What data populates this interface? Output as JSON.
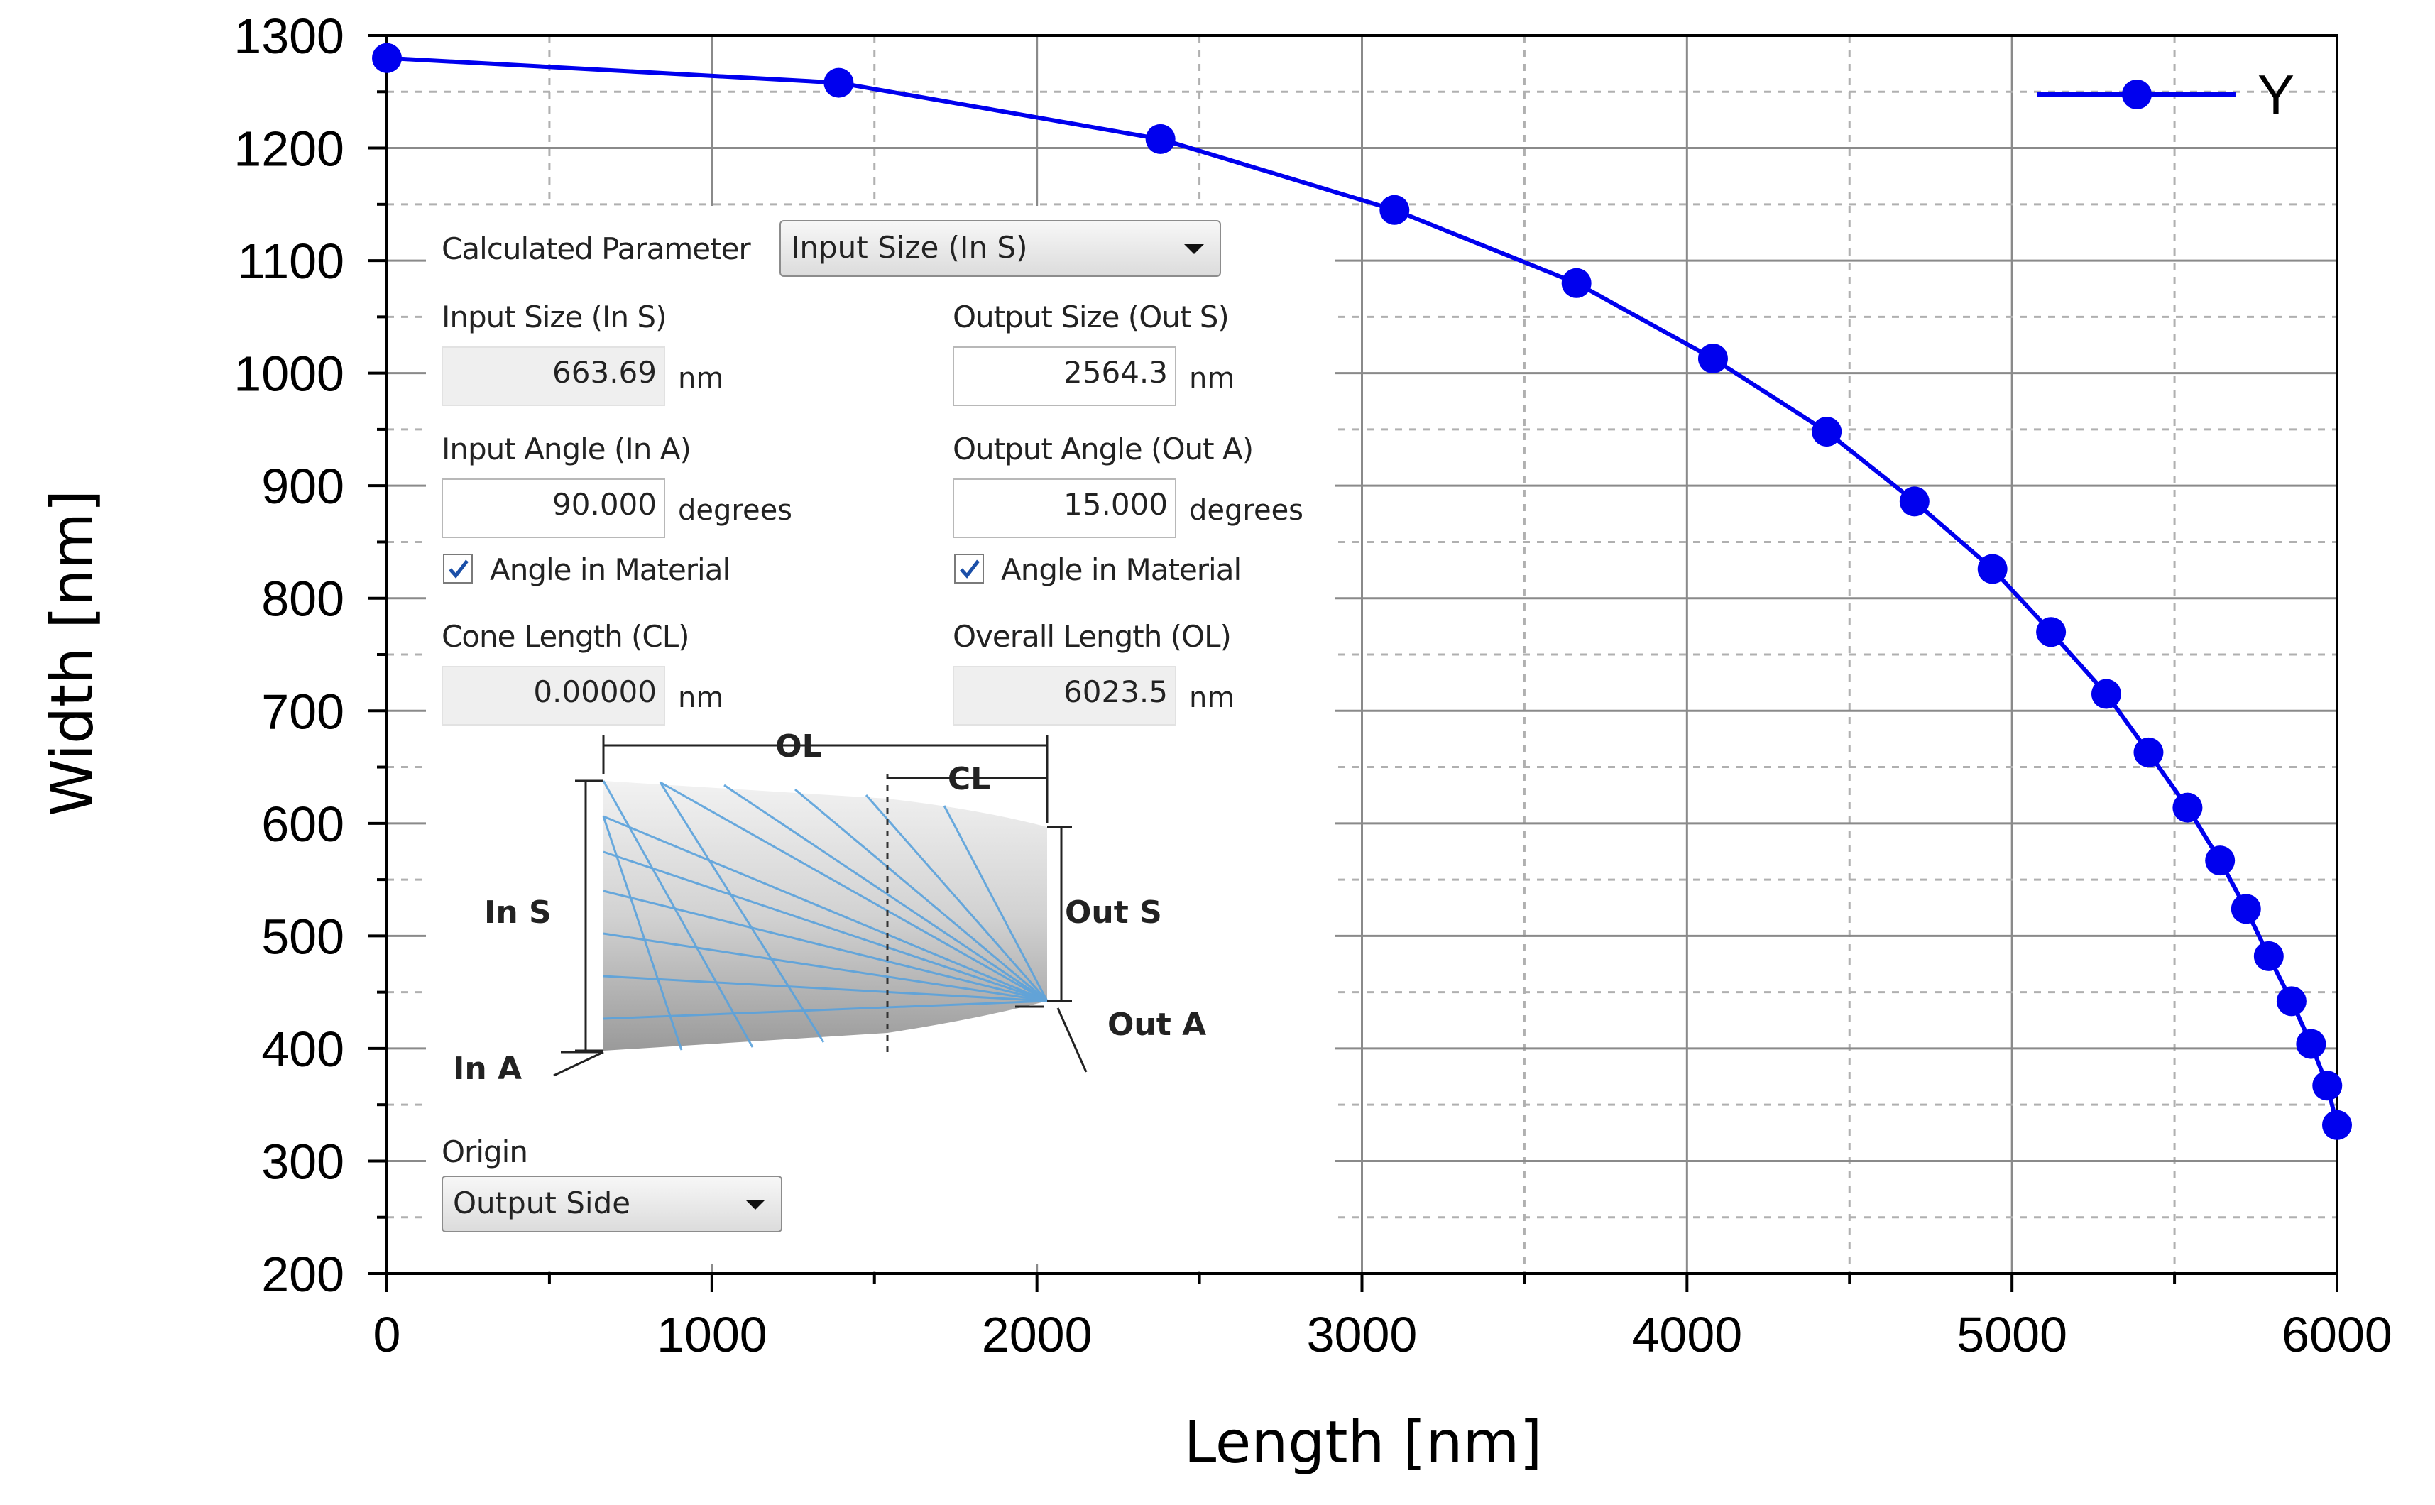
{
  "chart_data": {
    "type": "line",
    "title": "",
    "xlabel": "Length [nm]",
    "ylabel": "Width [nm]",
    "xlim": [
      0,
      6000
    ],
    "ylim": [
      200,
      1300
    ],
    "xticks": [
      0,
      1000,
      2000,
      3000,
      4000,
      5000,
      6000
    ],
    "yticks": [
      200,
      300,
      400,
      500,
      600,
      700,
      800,
      900,
      1000,
      1100,
      1200,
      1300
    ],
    "grid": true,
    "legend_position": "top-right",
    "series": [
      {
        "name": "Y",
        "color": "#0000ee",
        "marker": "circle",
        "x": [
          0,
          1390,
          2380,
          3100,
          3660,
          4080,
          4430,
          4700,
          4940,
          5120,
          5290,
          5420,
          5540,
          5640,
          5720,
          5790,
          5860,
          5920,
          5970,
          6000
        ],
        "y": [
          1280,
          1258,
          1208,
          1145,
          1080,
          1013,
          948,
          886,
          826,
          770,
          715,
          663,
          614,
          567,
          524,
          482,
          442,
          404,
          367,
          332
        ]
      }
    ]
  },
  "inset": {
    "calc_param_label": "Calculated Parameter",
    "calc_param_value": "Input Size (In S)",
    "input_size_label": "Input Size (In S)",
    "input_size_value": "663.69",
    "input_size_unit": "nm",
    "output_size_label": "Output Size (Out S)",
    "output_size_value": "2564.3",
    "output_size_unit": "nm",
    "input_angle_label": "Input Angle (In A)",
    "input_angle_value": "90.000",
    "input_angle_unit": "degrees",
    "output_angle_label": "Output Angle (Out A)",
    "output_angle_value": "15.000",
    "output_angle_unit": "degrees",
    "angle_in_material_label_1": "Angle in Material",
    "angle_in_material_label_2": "Angle in Material",
    "cone_length_label": "Cone Length (CL)",
    "cone_length_value": "0.00000",
    "cone_length_unit": "nm",
    "overall_length_label": "Overall Length (OL)",
    "overall_length_value": "6023.5",
    "overall_length_unit": "nm",
    "diagram": {
      "ol": "OL",
      "cl": "CL",
      "in_s": "In S",
      "out_s": "Out S",
      "in_a": "In A",
      "out_a": "Out A"
    },
    "origin_label": "Origin",
    "origin_value": "Output Side"
  }
}
